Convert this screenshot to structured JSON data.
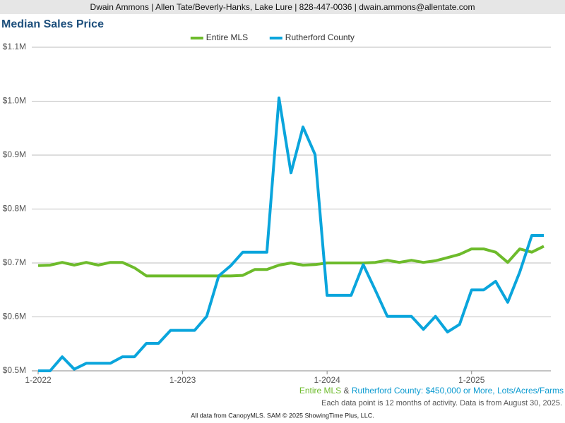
{
  "header": {
    "text": "Dwain Ammons | Allen Tate/Beverly-Hanks, Lake Lure | 828-447-0036 | dwain.ammons@allentate.com"
  },
  "chart_data": {
    "type": "line",
    "title": "Median Sales Price",
    "categories": [
      "1-2022",
      null,
      null,
      null,
      null,
      null,
      null,
      null,
      null,
      null,
      null,
      null,
      "1-2023",
      null,
      null,
      null,
      null,
      null,
      null,
      null,
      null,
      null,
      null,
      null,
      "1-2024",
      null,
      null,
      null,
      null,
      null,
      null,
      null,
      null,
      null,
      null,
      null,
      "1-2025",
      null,
      null,
      null,
      null,
      null,
      null
    ],
    "series": [
      {
        "name": "Entire MLS",
        "color": "#6dbb2b",
        "values": [
          695000,
          696000,
          701000,
          696000,
          701000,
          696000,
          701000,
          701000,
          691000,
          676000,
          676000,
          676000,
          676000,
          676000,
          676000,
          676000,
          676000,
          677000,
          688000,
          688000,
          696000,
          700000,
          696000,
          697000,
          700000,
          700000,
          700000,
          700000,
          701000,
          705000,
          701000,
          705000,
          701000,
          704000,
          710000,
          716000,
          726000,
          726000,
          720000,
          701000,
          726000,
          720000,
          731000
        ]
      },
      {
        "name": "Rutherford County",
        "color": "#0aa5dc",
        "values": [
          500000,
          500000,
          526000,
          503000,
          514000,
          514000,
          514000,
          526000,
          526000,
          551000,
          551000,
          575000,
          575000,
          575000,
          601000,
          676000,
          695000,
          720000,
          720000,
          720000,
          1006000,
          867000,
          952000,
          901000,
          640000,
          640000,
          640000,
          697000,
          650000,
          601000,
          601000,
          601000,
          577000,
          601000,
          572000,
          586000,
          650000,
          650000,
          666000,
          627000,
          683000,
          751000,
          751000
        ]
      }
    ],
    "ylim": [
      500000,
      1100000
    ],
    "yticks": [
      {
        "value": 500000,
        "label": "$0.5M"
      },
      {
        "value": 600000,
        "label": "$0.6M"
      },
      {
        "value": 700000,
        "label": "$0.7M"
      },
      {
        "value": 800000,
        "label": "$0.8M"
      },
      {
        "value": 900000,
        "label": "$0.9M"
      },
      {
        "value": 1000000,
        "label": "$1.0M"
      },
      {
        "value": 1100000,
        "label": "$1.1M"
      }
    ],
    "grid": true,
    "legend": "top"
  },
  "footer": {
    "criteria": [
      "Entire MLS",
      " & ",
      "Rutherford County",
      ": $450,000 or More, Lots/Acres/Farms"
    ],
    "note": "Each data point is 12 months of activity. Data is from August 30, 2025.",
    "source": "All data from CanopyMLS. SAM © 2025 ShowingTime Plus, LLC."
  }
}
